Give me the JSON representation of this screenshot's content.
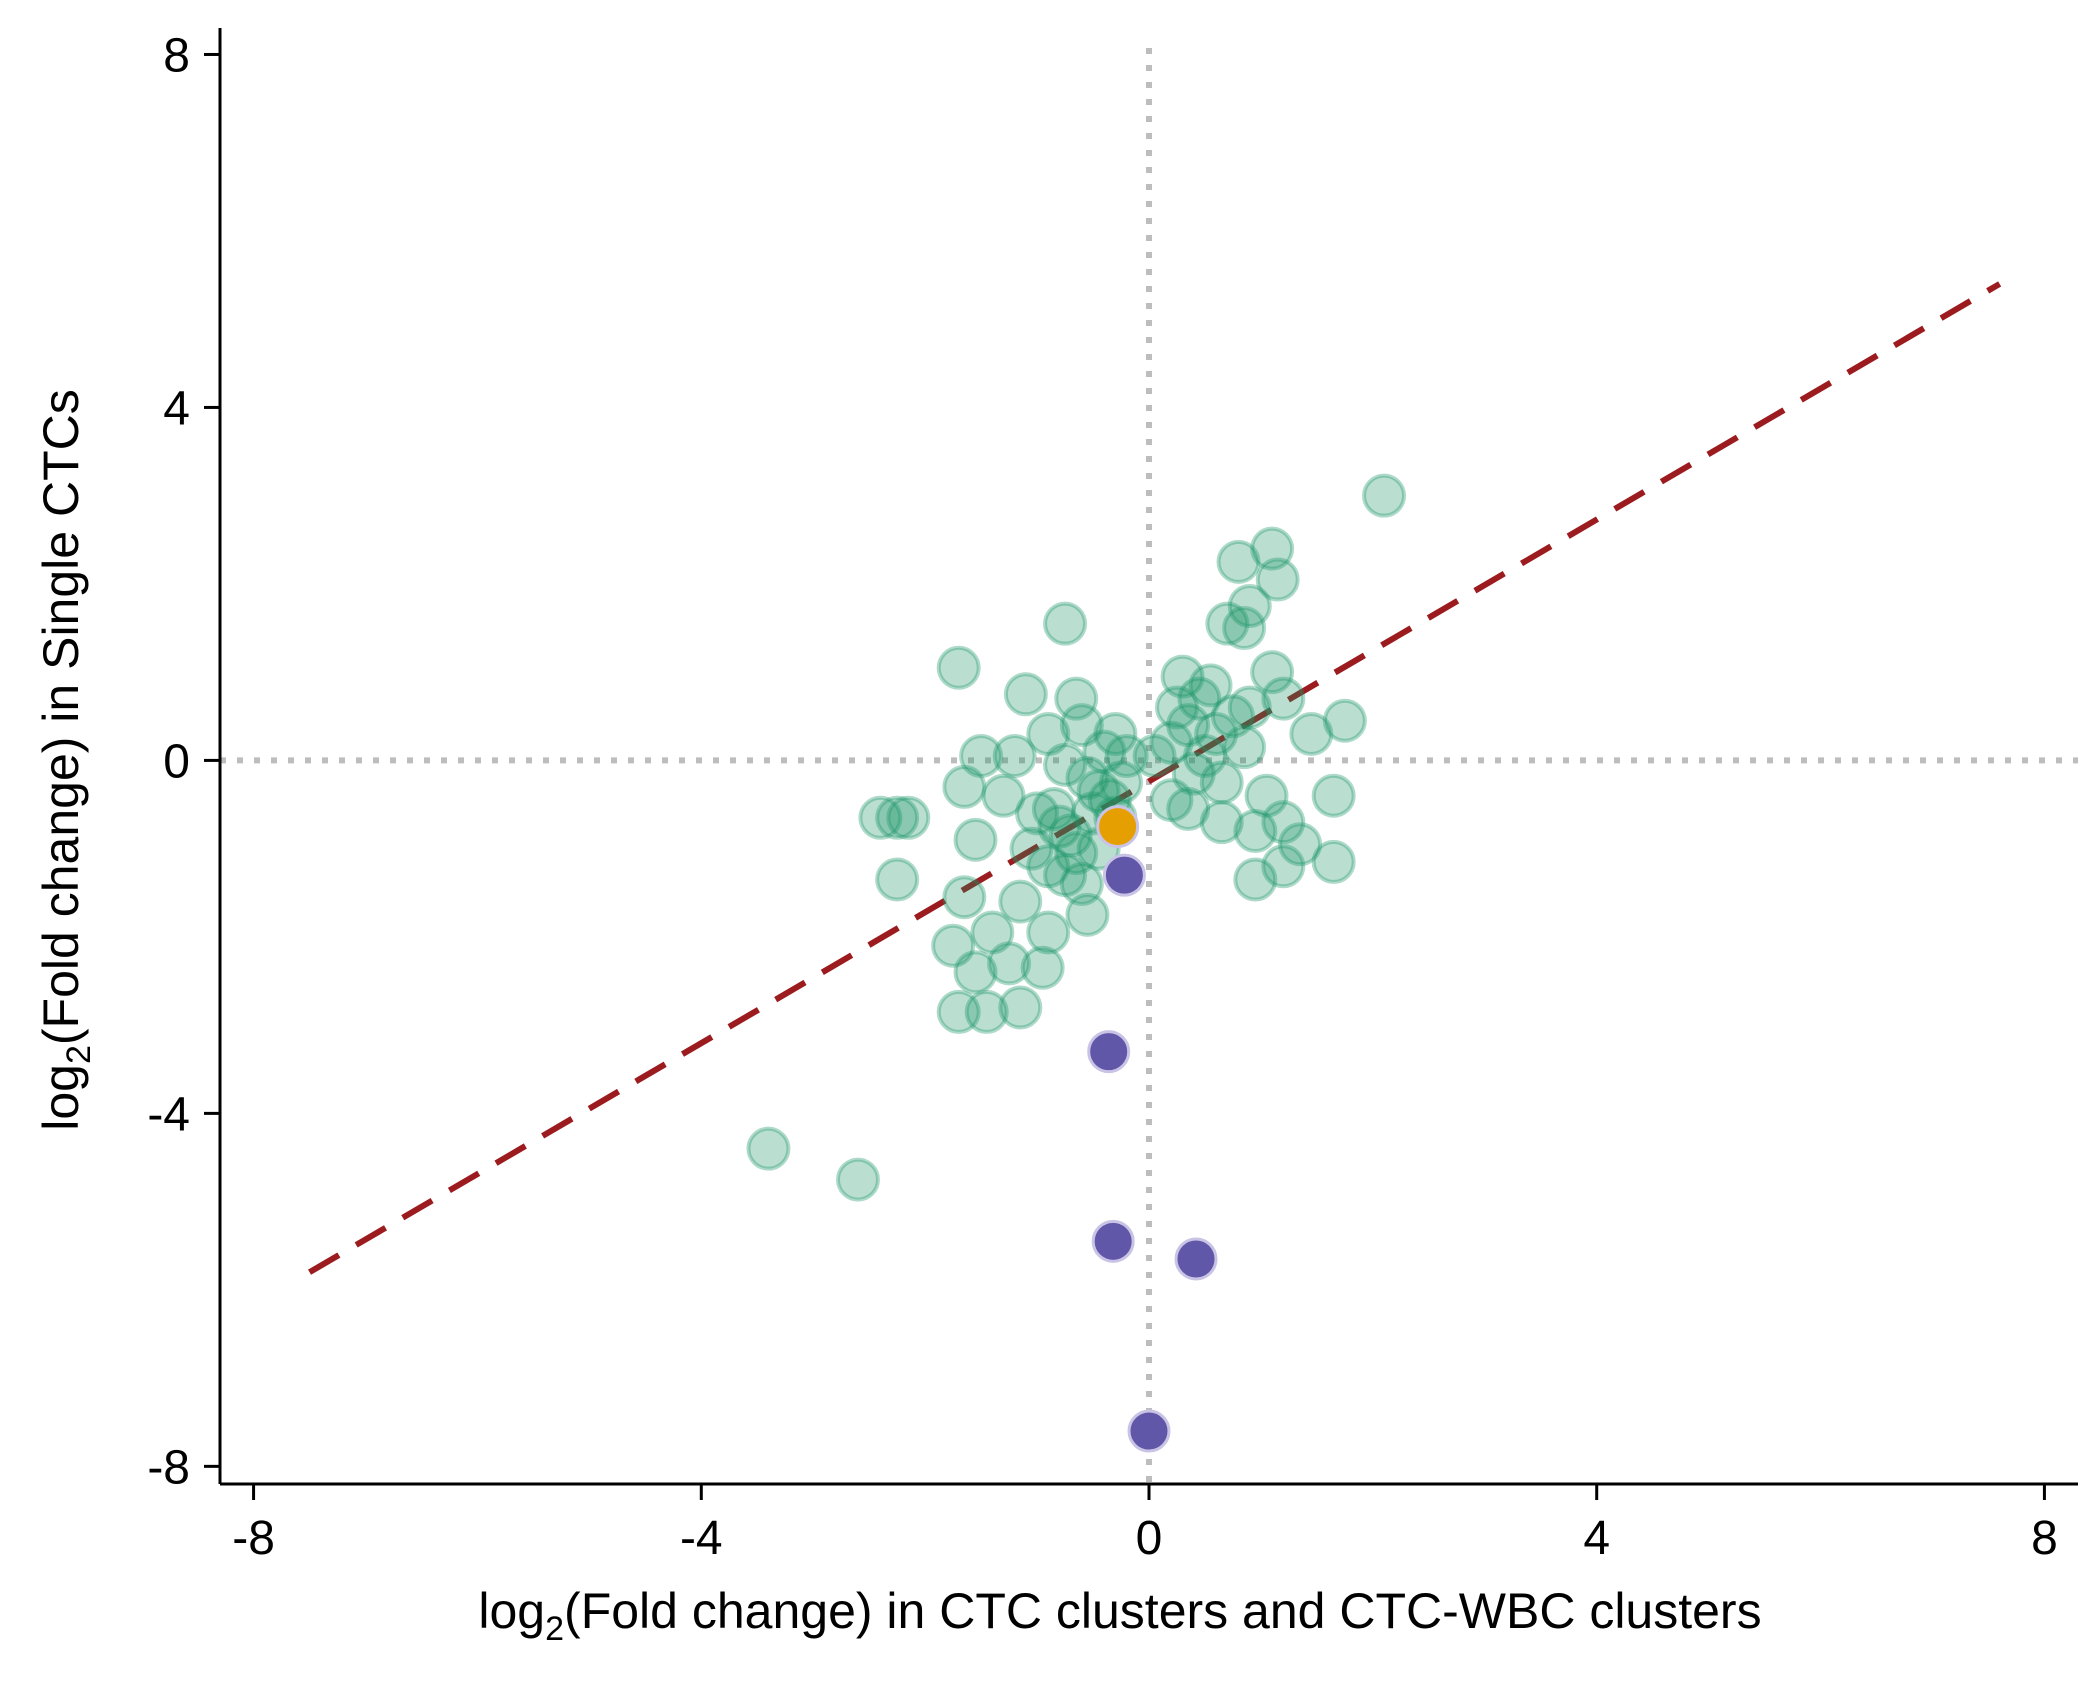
{
  "chart_data": {
    "type": "scatter",
    "xlabel": {
      "prefix": "log",
      "subscript": "2",
      "rest": "(Fold change) in CTC clusters and CTC-WBC clusters"
    },
    "ylabel": {
      "prefix": "log",
      "subscript": "2",
      "rest": "(Fold change) in Single CTCs"
    },
    "xlim": [
      -8.3,
      8.3
    ],
    "ylim": [
      -8.2,
      8.3
    ],
    "xticks": [
      -8,
      -4,
      0,
      4,
      8
    ],
    "xtick_labels": [
      "-8",
      "-4",
      "0",
      "4",
      "8"
    ],
    "yticks": [
      -8,
      -4,
      0,
      4,
      8
    ],
    "ytick_labels": [
      "-8",
      "-4",
      "0",
      "4",
      "8"
    ],
    "grid": false,
    "legend": "none",
    "reference_lines": {
      "vertical_x": 0,
      "horizontal_y": 0,
      "style": "dotted",
      "color": "#bdbdbd"
    },
    "trend_line": {
      "style": "dashed",
      "color": "#9b1b1e",
      "x": [
        -7.5,
        7.6
      ],
      "y": [
        -5.8,
        5.4
      ]
    },
    "series": [
      {
        "color": "#1b9467",
        "alpha": 0.3,
        "points": [
          [
            2.1,
            3.0
          ],
          [
            1.1,
            2.4
          ],
          [
            1.15,
            2.05
          ],
          [
            0.8,
            2.25
          ],
          [
            0.9,
            1.75
          ],
          [
            0.85,
            1.5
          ],
          [
            0.7,
            1.55
          ],
          [
            -0.75,
            1.55
          ],
          [
            -1.7,
            1.05
          ],
          [
            -1.1,
            0.75
          ],
          [
            -0.65,
            0.7
          ],
          [
            1.2,
            0.7
          ],
          [
            1.1,
            1.0
          ],
          [
            1.75,
            0.45
          ],
          [
            1.45,
            0.3
          ],
          [
            -1.5,
            0.05
          ],
          [
            -1.2,
            0.05
          ],
          [
            -0.9,
            0.3
          ],
          [
            -0.6,
            0.4
          ],
          [
            -0.3,
            0.3
          ],
          [
            -0.4,
            0.1
          ],
          [
            -1.65,
            -0.3
          ],
          [
            -1.3,
            -0.4
          ],
          [
            -2.4,
            -0.65
          ],
          [
            -2.25,
            -0.65
          ],
          [
            -2.15,
            -0.65
          ],
          [
            -1.55,
            -0.9
          ],
          [
            -1.05,
            -1.0
          ],
          [
            -0.75,
            -1.3
          ],
          [
            -2.25,
            -1.35
          ],
          [
            -1.65,
            -1.55
          ],
          [
            -1.15,
            -1.6
          ],
          [
            -0.9,
            -1.95
          ],
          [
            -0.55,
            -1.75
          ],
          [
            -1.75,
            -2.1
          ],
          [
            -1.4,
            -1.95
          ],
          [
            -1.25,
            -2.3
          ],
          [
            -0.95,
            -2.35
          ],
          [
            -1.55,
            -2.4
          ],
          [
            -1.7,
            -2.85
          ],
          [
            -1.45,
            -2.85
          ],
          [
            -1.15,
            -2.8
          ],
          [
            -3.4,
            -4.4
          ],
          [
            -2.6,
            -4.75
          ],
          [
            1.65,
            -0.4
          ],
          [
            1.05,
            -0.4
          ],
          [
            0.95,
            -0.8
          ],
          [
            1.2,
            -0.7
          ],
          [
            1.35,
            -0.95
          ],
          [
            1.65,
            -1.15
          ],
          [
            0.95,
            -1.35
          ],
          [
            1.2,
            -1.2
          ],
          [
            0.65,
            -0.7
          ],
          [
            0.35,
            -0.55
          ],
          [
            0.2,
            -0.45
          ],
          [
            -0.85,
            -0.55
          ],
          [
            -0.7,
            -0.85
          ],
          [
            -0.45,
            -1.0
          ],
          [
            -0.6,
            -1.4
          ],
          [
            -0.9,
            -1.2
          ],
          [
            -0.3,
            -0.65
          ],
          [
            -0.55,
            -0.2
          ],
          [
            -0.75,
            -0.05
          ],
          [
            -0.25,
            -0.25
          ],
          [
            0.05,
            0.05
          ],
          [
            0.2,
            0.2
          ],
          [
            0.35,
            0.4
          ],
          [
            0.45,
            0.7
          ],
          [
            0.55,
            0.85
          ],
          [
            0.3,
            0.95
          ],
          [
            0.6,
            0.3
          ],
          [
            0.75,
            0.5
          ],
          [
            0.85,
            0.15
          ],
          [
            0.4,
            -0.15
          ],
          [
            0.65,
            -0.25
          ],
          [
            0.9,
            0.6
          ],
          [
            0.25,
            0.6
          ],
          [
            0.5,
            0.05
          ],
          [
            -0.35,
            -0.45
          ],
          [
            -0.5,
            -0.6
          ],
          [
            -0.8,
            -0.75
          ],
          [
            -1.0,
            -0.6
          ],
          [
            -0.65,
            -1.05
          ],
          [
            -0.45,
            -0.35
          ],
          [
            -0.2,
            0.05
          ]
        ]
      },
      {
        "color": "#e69f00",
        "alpha": 1,
        "points": [
          [
            -0.28,
            -0.75
          ]
        ]
      },
      {
        "color": "#6057a8",
        "alpha": 1,
        "points": [
          [
            -0.22,
            -1.3
          ],
          [
            -0.36,
            -3.3
          ],
          [
            -0.32,
            -5.45
          ],
          [
            0.42,
            -5.65
          ],
          [
            0.0,
            -7.6
          ]
        ]
      }
    ]
  }
}
